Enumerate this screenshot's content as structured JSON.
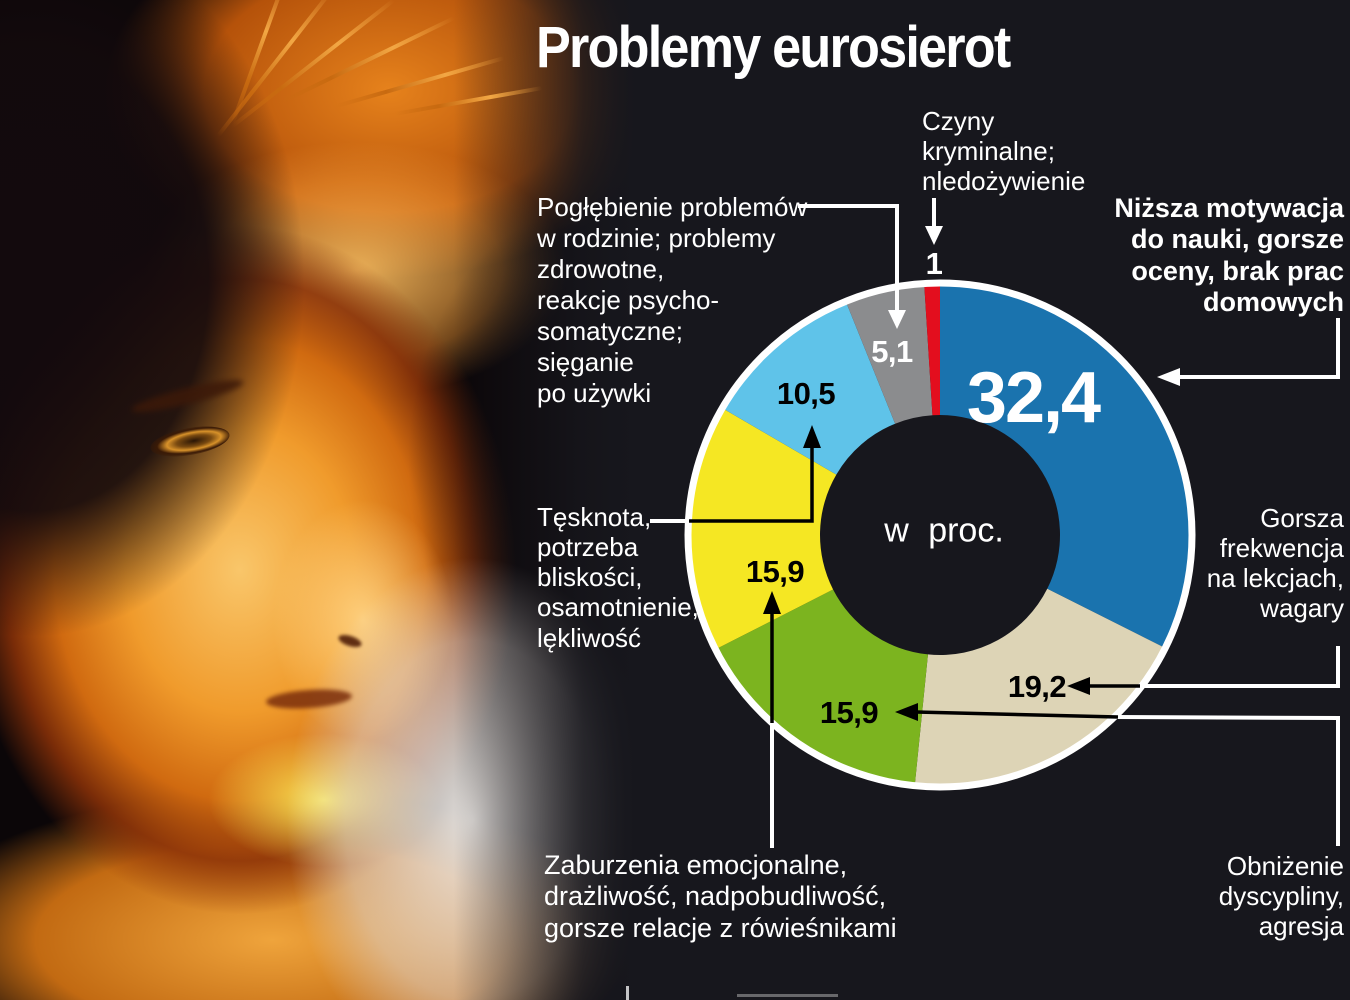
{
  "title": "Problemy eurosierot",
  "background_color": "#17171d",
  "chart_data": {
    "type": "pie",
    "subtype": "donut",
    "title": "Problemy eurosierot",
    "unit_label": "w proc.",
    "legend_position": "callouts-around-chart",
    "segments": [
      {
        "label": "Niższa motywacja do nauki, gorsze oceny, brak prac domowych",
        "value": 32.4,
        "display": "32,4",
        "color": "#1a73ae",
        "text_color": "#ffffff"
      },
      {
        "label": "Gorsza frekwencja na lekcjach, wagary",
        "value": 19.2,
        "display": "19,2",
        "color": "#ddd4b6",
        "text_color": "#000000"
      },
      {
        "label": "Obniżenie dyscypliny, agresja",
        "value": 15.9,
        "display": "15,9",
        "color": "#7cb41f",
        "text_color": "#000000"
      },
      {
        "label": "Zaburzenia emocjonalne, drażliwość, nadpobudliwość, gorsze relacje z rówieśnikami",
        "value": 15.9,
        "display": "15,9",
        "color": "#f5e723",
        "text_color": "#000000"
      },
      {
        "label": "Tęsknota, potrzeba bliskości, osamotnienie, lękliwość",
        "value": 10.5,
        "display": "10,5",
        "color": "#5fc3e9",
        "text_color": "#000000"
      },
      {
        "label": "Pogłębienie problemów w rodzinie; problemy zdrowotne, reakcje psycho-somatyczne; sięganie po używki",
        "value": 5.1,
        "display": "5,1",
        "color": "#8b8c8e",
        "text_color": "#ffffff"
      },
      {
        "label": "Czyny kryminalne; nledożywienie",
        "value": 1,
        "display": "1",
        "color": "#e30e1e",
        "text_color": "#ffffff"
      }
    ]
  },
  "callouts": {
    "czyny": {
      "text": "Czyny\nkryminalne;\nnledożywienie"
    },
    "poglebienie": {
      "text": "Pogłębienie problemów\nw rodzinie; problemy\nzdrowotne,\nreakcje psycho-\nsomatyczne;\nsięganie\npo używki"
    },
    "tesknota": {
      "text": "Tęsknota,\npotrzeba\nbliskości,\nosamotnienie,\nlękliwość"
    },
    "zaburzenia": {
      "text": "Zaburzenia emocjonalne,\ndrażliwość, nadpobudliwość,\ngorsze relacje z rówieśnikami"
    },
    "nizsza": {
      "text": "Niższa motywacja\ndo nauki, gorsze\noceny, brak prac\ndomowych"
    },
    "gorsza": {
      "text": "Gorsza\nfrekwencja\nna lekcjach,\nwagary"
    },
    "obnizenie": {
      "text": "Obniżenie\ndyscypliny,\nagresja"
    }
  }
}
